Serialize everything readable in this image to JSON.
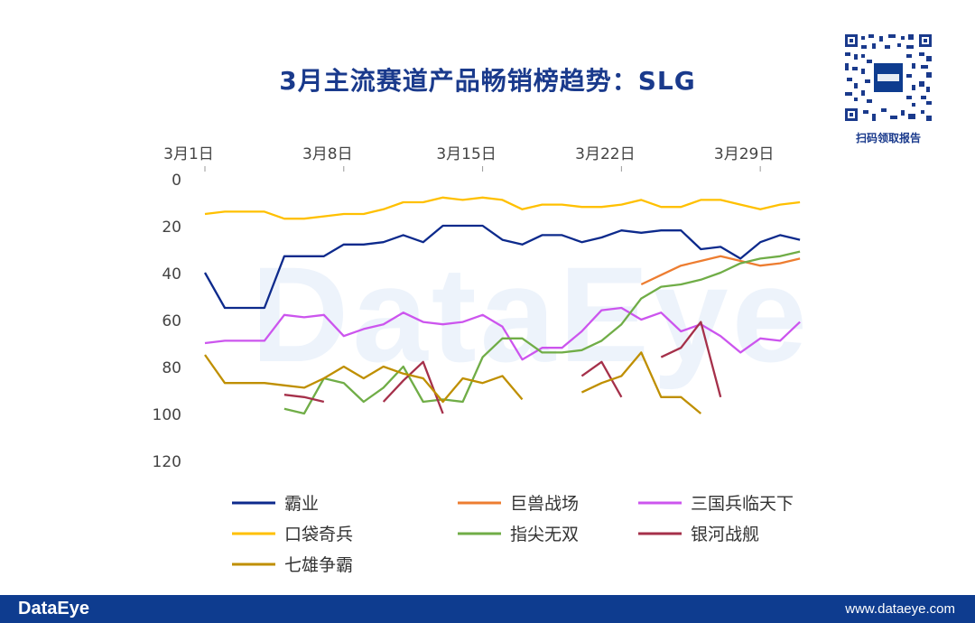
{
  "title": "3月主流赛道产品畅销榜趋势：SLG",
  "qr_caption": "扫码领取报告",
  "watermark": "DataEye",
  "footer": {
    "brand": "DataEye",
    "url": "www.dataeye.com"
  },
  "colors": {
    "brand": "#0e3c8f",
    "title": "#1a3a8c"
  },
  "chart_data": {
    "type": "line",
    "title": "3月主流赛道产品畅销榜趋势：SLG",
    "x_ticks": [
      "3月1日",
      "3月8日",
      "3月15日",
      "3月22日",
      "3月29日"
    ],
    "x_tick_days": [
      1,
      8,
      15,
      22,
      29
    ],
    "x": [
      1,
      2,
      3,
      4,
      5,
      6,
      7,
      8,
      9,
      10,
      11,
      12,
      13,
      14,
      15,
      16,
      17,
      18,
      19,
      20,
      21,
      22,
      23,
      24,
      25,
      26,
      27,
      28,
      29,
      30,
      31
    ],
    "y_ticks": [
      0,
      20,
      40,
      60,
      80,
      100,
      120
    ],
    "ylim": [
      0,
      120
    ],
    "y_inverted": true,
    "x_axis_position": "top",
    "grid": false,
    "legend_position": "bottom",
    "series": [
      {
        "name": "霸业",
        "color": "#0d2a8c",
        "values": [
          40,
          55,
          55,
          55,
          33,
          33,
          33,
          28,
          28,
          27,
          24,
          27,
          20,
          20,
          20,
          26,
          28,
          24,
          24,
          27,
          25,
          22,
          23,
          22,
          22,
          30,
          29,
          34,
          27,
          24,
          26
        ]
      },
      {
        "name": "巨兽战场",
        "color": "#ed7d31",
        "values": [
          null,
          null,
          null,
          null,
          null,
          null,
          null,
          null,
          null,
          null,
          null,
          null,
          null,
          null,
          null,
          null,
          null,
          null,
          null,
          null,
          null,
          null,
          45,
          41,
          37,
          35,
          33,
          35,
          37,
          36,
          34
        ]
      },
      {
        "name": "三国兵临天下",
        "color": "#cc55ee",
        "values": [
          70,
          69,
          69,
          69,
          58,
          59,
          58,
          67,
          64,
          62,
          57,
          61,
          62,
          61,
          58,
          63,
          77,
          72,
          72,
          65,
          56,
          55,
          60,
          57,
          65,
          62,
          67,
          74,
          68,
          69,
          61
        ]
      },
      {
        "name": "口袋奇兵",
        "color": "#ffc000",
        "values": [
          15,
          14,
          14,
          14,
          17,
          17,
          16,
          15,
          15,
          13,
          10,
          10,
          8,
          9,
          8,
          9,
          13,
          11,
          11,
          12,
          12,
          11,
          9,
          12,
          12,
          9,
          9,
          11,
          13,
          11,
          10
        ]
      },
      {
        "name": "指尖无双",
        "color": "#70ad47",
        "values": [
          null,
          null,
          null,
          null,
          98,
          100,
          85,
          87,
          95,
          89,
          80,
          95,
          94,
          95,
          76,
          68,
          68,
          74,
          74,
          73,
          69,
          62,
          51,
          46,
          45,
          43,
          40,
          36,
          34,
          33,
          31
        ]
      },
      {
        "name": "银河战舰",
        "color": "#a5304a",
        "values": [
          null,
          null,
          null,
          null,
          92,
          93,
          95,
          null,
          null,
          95,
          86,
          78,
          100,
          null,
          null,
          null,
          null,
          null,
          null,
          84,
          78,
          93,
          null,
          76,
          72,
          61,
          93,
          null,
          null,
          null,
          null
        ]
      },
      {
        "name": "七雄争霸",
        "color": "#bf8f00",
        "values": [
          75,
          87,
          87,
          87,
          88,
          89,
          85,
          80,
          85,
          80,
          83,
          85,
          95,
          85,
          87,
          84,
          94,
          null,
          null,
          91,
          87,
          84,
          74,
          93,
          93,
          100,
          null,
          null,
          null,
          null,
          null
        ]
      }
    ]
  }
}
